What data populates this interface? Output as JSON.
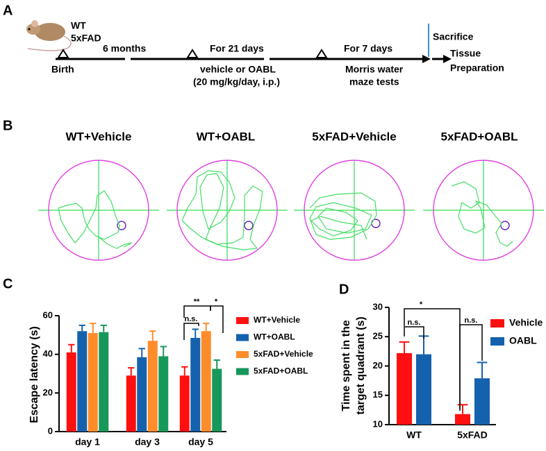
{
  "panel_a": {
    "label": "A",
    "strain_1": "WT",
    "strain_2": "5xFAD",
    "period_1": "6 months",
    "period_2": "For 21 days",
    "period_3": "For 7 days",
    "start": "Birth",
    "treatment_1": "vehicle or OABL",
    "treatment_2": "(20 mg/kg/day, i.p.)",
    "test_1": "Morris water",
    "test_2": "maze tests",
    "end_1": "Sacrifice",
    "end_2": "Tissue",
    "end_3": "Preparation"
  },
  "panel_b": {
    "label": "B",
    "titles": [
      "WT+Vehicle",
      "WT+OABL",
      "5xFAD+Vehicle",
      "5xFAD+OABL"
    ]
  },
  "chart_data": [
    {
      "type": "bar",
      "panel_label": "C",
      "y_label": "Escape latency (s)",
      "categories": [
        "day 1",
        "day 3",
        "day 5"
      ],
      "series": [
        {
          "name": "WT+Vehicle",
          "color": "#ff1010",
          "values": [
            41,
            29,
            29
          ],
          "errors": [
            4,
            4,
            4.5
          ]
        },
        {
          "name": "WT+OABL",
          "color": "#1462ae",
          "values": [
            52,
            38.5,
            48.5
          ],
          "errors": [
            3,
            4.5,
            4.5
          ]
        },
        {
          "name": "5xFAD+Vehicle",
          "color": "#ff8c2a",
          "values": [
            51,
            47,
            52
          ],
          "errors": [
            5,
            5,
            4
          ]
        },
        {
          "name": "5xFAD+OABL",
          "color": "#17985a",
          "values": [
            51.5,
            39,
            32.5
          ],
          "errors": [
            3.5,
            5,
            4.5
          ]
        }
      ],
      "ylim": [
        0,
        60
      ],
      "yticks": [
        0,
        20,
        40,
        60
      ],
      "annotations": [
        "**",
        "*",
        "n.s."
      ]
    },
    {
      "type": "bar",
      "panel_label": "D",
      "y_label": [
        "Time spent in the",
        "target quadrant (s)"
      ],
      "categories": [
        "WT",
        "5xFAD"
      ],
      "series": [
        {
          "name": "Vehicle",
          "color": "#ff1010",
          "values": [
            22.2,
            11.8
          ],
          "errors": [
            1.9,
            1.6
          ]
        },
        {
          "name": "OABL",
          "color": "#1462ae",
          "values": [
            22.0,
            17.9
          ],
          "errors": [
            3.1,
            2.7
          ]
        }
      ],
      "ylim": [
        10,
        30
      ],
      "yticks": [
        10,
        15,
        20,
        25,
        30
      ],
      "annotations": [
        "*",
        "n.s.",
        "n.s."
      ]
    }
  ]
}
